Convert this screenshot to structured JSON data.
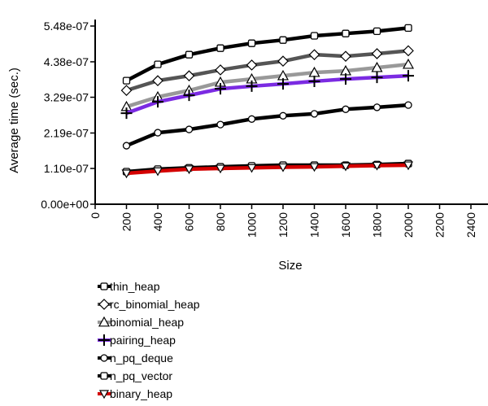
{
  "chart_data": {
    "type": "line",
    "xlabel": "Size",
    "ylabel": "Average time (sec.)",
    "xlim": [
      0,
      2500
    ],
    "ylim": [
      0,
      5.48e-07
    ],
    "x_ticks": [
      "0",
      "200",
      "400",
      "600",
      "800",
      "1000",
      "1200",
      "1400",
      "1600",
      "1800",
      "2000",
      "2200",
      "2400"
    ],
    "y_ticks": [
      "0.00e+00",
      "1.10e-07",
      "2.19e-07",
      "3.29e-07",
      "4.38e-07",
      "5.48e-07"
    ],
    "grid": false,
    "legend_position": "bottom-left",
    "x": [
      200,
      400,
      600,
      800,
      1000,
      1200,
      1400,
      1600,
      1800,
      2000
    ],
    "series": [
      {
        "name": "thin_heap",
        "color": "#000000",
        "marker": "square",
        "values": [
          3.8e-07,
          4.3e-07,
          4.6e-07,
          4.8e-07,
          4.95e-07,
          5.05e-07,
          5.18e-07,
          5.25e-07,
          5.32e-07,
          5.42e-07
        ]
      },
      {
        "name": "rc_binomial_heap",
        "color": "#555555",
        "marker": "diamond",
        "values": [
          3.5e-07,
          3.8e-07,
          3.95e-07,
          4.13e-07,
          4.28e-07,
          4.4e-07,
          4.6e-07,
          4.55e-07,
          4.63e-07,
          4.72e-07
        ]
      },
      {
        "name": "binomial_heap",
        "color": "#999999",
        "marker": "triangle",
        "values": [
          3e-07,
          3.3e-07,
          3.5e-07,
          3.75e-07,
          3.85e-07,
          3.95e-07,
          4.05e-07,
          4.1e-07,
          4.2e-07,
          4.3e-07
        ]
      },
      {
        "name": "pairing_heap",
        "color": "#7b2be2",
        "marker": "plus",
        "values": [
          2.8e-07,
          3.15e-07,
          3.35e-07,
          3.55e-07,
          3.63e-07,
          3.7e-07,
          3.78e-07,
          3.85e-07,
          3.9e-07,
          3.95e-07
        ]
      },
      {
        "name": "n_pq_deque",
        "color": "#000000",
        "marker": "circle",
        "values": [
          1.8e-07,
          2.2e-07,
          2.3e-07,
          2.45e-07,
          2.62e-07,
          2.72e-07,
          2.78e-07,
          2.92e-07,
          2.98e-07,
          3.05e-07
        ]
      },
      {
        "name": "n_pq_vector",
        "color": "#000000",
        "marker": "square",
        "values": [
          1e-07,
          1.08e-07,
          1.12e-07,
          1.15e-07,
          1.18e-07,
          1.2e-07,
          1.2e-07,
          1.2e-07,
          1.22e-07,
          1.25e-07
        ]
      },
      {
        "name": "binary_heap",
        "color": "#d40000",
        "marker": "triangle-down",
        "values": [
          9.5e-08,
          1.02e-07,
          1.08e-07,
          1.1e-07,
          1.12e-07,
          1.14e-07,
          1.15e-07,
          1.17e-07,
          1.19e-07,
          1.2e-07
        ]
      }
    ]
  }
}
